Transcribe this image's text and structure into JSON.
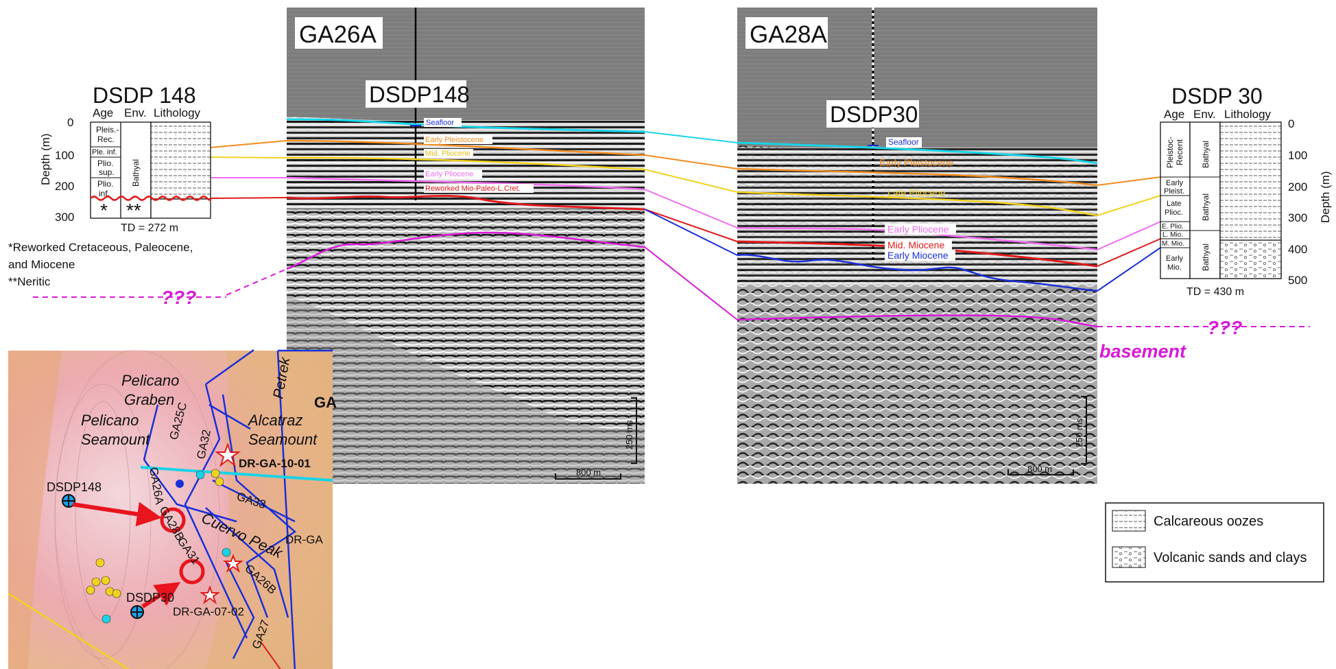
{
  "colors": {
    "seafloor": "#19d3e6",
    "early_pleistocene": "#f28c1e",
    "late_pliocene": "#f2d21e",
    "early_pliocene": "#f06cf0",
    "mid_miocene": "#e01a1a",
    "early_miocene": "#1a2fd8",
    "basement": "#d81ad8",
    "map_lines": "#1a2fd8",
    "arrow": "#e8141e"
  },
  "dsdp148_column": {
    "title": "DSDP 148",
    "col_age": "Age",
    "col_env": "Env.",
    "col_lith": "Lithology",
    "ylabel": "Depth (m)",
    "ticks": [
      "0",
      "100",
      "200",
      "300"
    ],
    "ages": [
      "Pleis.-",
      "Rec.",
      "Ple. inf.",
      "Plio.",
      "sup.",
      "Plio.",
      "inf."
    ],
    "env": "Bathyal",
    "star1": "*",
    "star2": "**",
    "td": "TD = 272 m",
    "note1": "*Reworked Cretaceous, Paleocene,",
    "note2": "and Miocene",
    "note3": "**Neritic"
  },
  "dsdp30_column": {
    "title": "DSDP 30",
    "col_age": "Age",
    "col_env": "Env.",
    "col_lith": "Lithology",
    "ylabel": "Depth (m)",
    "ticks": [
      "0",
      "100",
      "200",
      "300",
      "400",
      "500"
    ],
    "ages": [
      "Pleistoc-",
      "Recent",
      "Early",
      "Pleist.",
      "Late",
      "Plioc.",
      "E. Plio.",
      "L. Mio.",
      "M. Mio.",
      "Early",
      "Mio."
    ],
    "env": "Bathyal",
    "td": "TD = 430 m"
  },
  "profile_a": {
    "name": "GA26A",
    "well": "DSDP148",
    "labels": [
      "Seafloor",
      "Early Pleistocene",
      "Mid. Pliocene",
      "Early Pliocene",
      "Reworked Mio-Paleo-L.Cret."
    ],
    "scale_v": "250 ms",
    "scale_h": "800 m"
  },
  "profile_b": {
    "name": "GA28A",
    "well": "DSDP30",
    "labels": [
      "Seafloor",
      "Early Pleistocene",
      "Late Pliocene",
      "Early Pliocene",
      "Mid. Miocene",
      "Early Miocene"
    ],
    "scale_v": "250 ms",
    "scale_h": "800 m"
  },
  "unknown_mark": "???",
  "basement_label": "basement",
  "legend": {
    "item1": "Calcareous oozes",
    "item2": "Volcanic sands and clays"
  },
  "map": {
    "pelicano_graben": [
      "Pelicano",
      "Graben"
    ],
    "pelicano_seamount": [
      "Pelicano",
      "Seamount"
    ],
    "alcatraz_seamount": [
      "Alcatraz",
      "Seamount"
    ],
    "cuervo_peak": "Cuervo Peak",
    "petrek": "Petrek",
    "ga_corner": "GA",
    "dr_ga_10": "DR-GA-10-01",
    "dr_ga_trunc": "DR-GA",
    "dr_ga_07": "DR-GA-07-02",
    "dsdp148": "DSDP148",
    "dsdp30": "DSDP30",
    "lines": [
      "GA25C",
      "GA32",
      "GA33",
      "GA26A",
      "GA26B",
      "GA27",
      "GA28B",
      "GA31"
    ]
  }
}
